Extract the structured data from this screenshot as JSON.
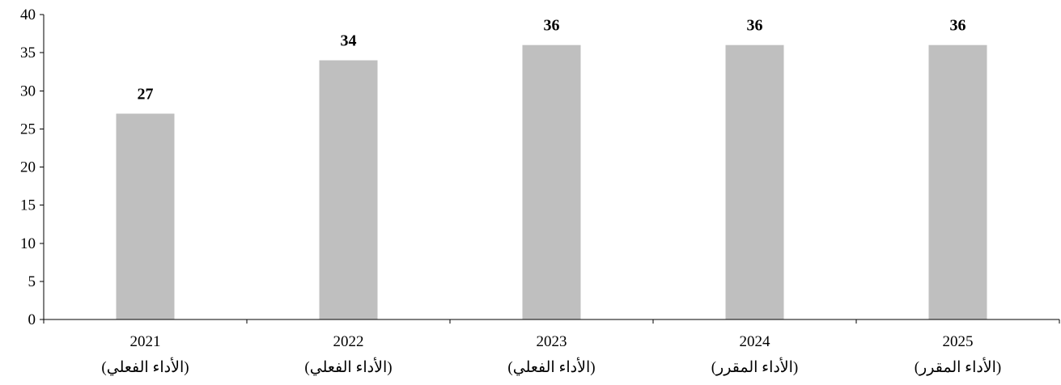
{
  "chart_data": {
    "type": "bar",
    "categories": [
      "2021",
      "2022",
      "2023",
      "2024",
      "2025"
    ],
    "category_sublabels": [
      "(الأداء الفعلي)",
      "(الأداء الفعلي)",
      "(الأداء الفعلي)",
      "(الأداء المقرر)",
      "(الأداء المقرر)"
    ],
    "values": [
      27,
      34,
      36,
      36,
      36
    ],
    "data_labels": [
      "27",
      "34",
      "36",
      "36",
      "36"
    ],
    "yticks": [
      0,
      5,
      10,
      15,
      20,
      25,
      30,
      35,
      40
    ],
    "ylim": [
      0,
      40
    ],
    "title": "",
    "xlabel": "",
    "ylabel": "",
    "grid": false,
    "legend": "none",
    "bar_color": "#bfbfbf",
    "axis_color": "#000000"
  }
}
